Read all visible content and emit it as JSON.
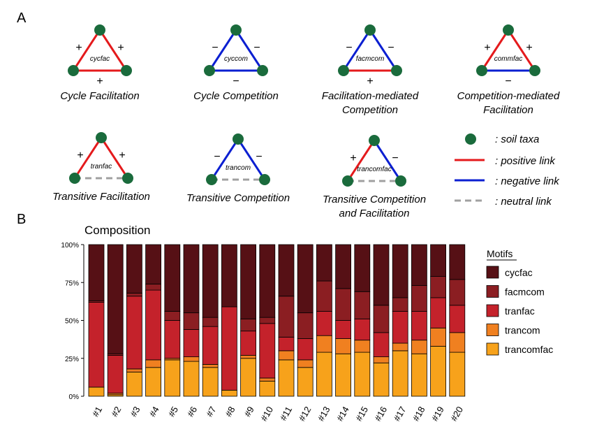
{
  "panel_a": {
    "label": "A",
    "motifs": [
      {
        "abbr": "cycfac",
        "caption": [
          "Cycle Facilitation"
        ],
        "left": "pos",
        "right": "pos",
        "bottom": "pos",
        "sign_left": "+",
        "sign_right": "+",
        "sign_bottom": "+"
      },
      {
        "abbr": "cyccom",
        "caption": [
          "Cycle Competition"
        ],
        "left": "neg",
        "right": "neg",
        "bottom": "neg",
        "sign_left": "−",
        "sign_right": "−",
        "sign_bottom": "−"
      },
      {
        "abbr": "facmcom",
        "caption": [
          "Facilitation-mediated",
          "Competition"
        ],
        "left": "neg",
        "right": "neg",
        "bottom": "pos",
        "sign_left": "−",
        "sign_right": "−",
        "sign_bottom": "+"
      },
      {
        "abbr": "commfac",
        "caption": [
          "Competition-mediated",
          "Facilitation"
        ],
        "left": "pos",
        "right": "pos",
        "bottom": "neg",
        "sign_left": "+",
        "sign_right": "+",
        "sign_bottom": "−"
      },
      {
        "abbr": "tranfac",
        "caption": [
          "Transitive Facilitation"
        ],
        "left": "pos",
        "right": "pos",
        "bottom": "neu",
        "sign_left": "+",
        "sign_right": "+",
        "sign_bottom": ""
      },
      {
        "abbr": "trancom",
        "caption": [
          "Transitive Competition"
        ],
        "left": "neg",
        "right": "neg",
        "bottom": "neu",
        "sign_left": "−",
        "sign_right": "−",
        "sign_bottom": ""
      },
      {
        "abbr": "trancomfac",
        "caption": [
          "Transitive Competition",
          "and Facilitation"
        ],
        "left": "pos",
        "right": "neg",
        "bottom": "neu",
        "sign_left": "+",
        "sign_right": "−",
        "sign_bottom": ""
      }
    ],
    "legend": [
      {
        "kind": "node",
        "label": ": soil taxa"
      },
      {
        "kind": "pos",
        "label": ": positive link"
      },
      {
        "kind": "neg",
        "label": ": negative link"
      },
      {
        "kind": "neu",
        "label": ": neutral link"
      }
    ],
    "colors": {
      "node": "#1a6b3c",
      "pos": "#e41a1c",
      "neg": "#0b1fd1",
      "neu": "#a0a0a0"
    }
  },
  "panel_b": {
    "label": "B",
    "chart_data": {
      "type": "bar",
      "stacked": true,
      "title": "Composition",
      "ylim": [
        0,
        1
      ],
      "yticks": [
        "0%",
        "25%",
        "50%",
        "75%",
        "100%"
      ],
      "categories": [
        "#1",
        "#2",
        "#3",
        "#4",
        "#5",
        "#6",
        "#7",
        "#8",
        "#9",
        "#10",
        "#11",
        "#12",
        "#13",
        "#14",
        "#15",
        "#16",
        "#17",
        "#18",
        "#19",
        "#20"
      ],
      "legend_title": "Motifs",
      "series": [
        {
          "name": "trancomfac",
          "color": "#f7a21b",
          "values": [
            0.06,
            0.01,
            0.16,
            0.19,
            0.24,
            0.23,
            0.19,
            0.04,
            0.25,
            0.1,
            0.24,
            0.19,
            0.29,
            0.28,
            0.29,
            0.22,
            0.3,
            0.28,
            0.33,
            0.29
          ]
        },
        {
          "name": "trancom",
          "color": "#f08020",
          "values": [
            0.0,
            0.01,
            0.02,
            0.05,
            0.01,
            0.03,
            0.02,
            0.0,
            0.02,
            0.02,
            0.06,
            0.05,
            0.11,
            0.1,
            0.08,
            0.04,
            0.05,
            0.09,
            0.12,
            0.13
          ]
        },
        {
          "name": "tranfac",
          "color": "#c4222b",
          "values": [
            0.56,
            0.25,
            0.48,
            0.46,
            0.25,
            0.18,
            0.25,
            0.55,
            0.16,
            0.36,
            0.09,
            0.14,
            0.16,
            0.12,
            0.14,
            0.16,
            0.21,
            0.19,
            0.2,
            0.18
          ]
        },
        {
          "name": "facmcom",
          "color": "#8b1e22",
          "values": [
            0.01,
            0.01,
            0.02,
            0.04,
            0.06,
            0.11,
            0.06,
            0.0,
            0.08,
            0.04,
            0.27,
            0.17,
            0.2,
            0.21,
            0.18,
            0.18,
            0.09,
            0.17,
            0.14,
            0.17
          ]
        },
        {
          "name": "cycfac",
          "color": "#561015",
          "values": [
            0.37,
            0.72,
            0.32,
            0.26,
            0.44,
            0.45,
            0.48,
            0.41,
            0.49,
            0.48,
            0.34,
            0.45,
            0.24,
            0.29,
            0.31,
            0.4,
            0.35,
            0.27,
            0.21,
            0.23
          ]
        }
      ],
      "legend_order": [
        "cycfac",
        "facmcom",
        "tranfac",
        "trancom",
        "trancomfac"
      ]
    }
  }
}
